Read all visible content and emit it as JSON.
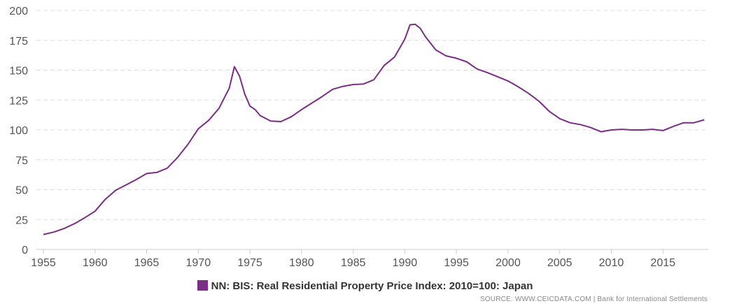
{
  "chart_data": {
    "type": "line",
    "title": "",
    "xlabel": "",
    "ylabel": "",
    "xlim": [
      1955,
      2020
    ],
    "ylim": [
      0,
      200
    ],
    "x_ticks": [
      1955,
      1960,
      1965,
      1970,
      1975,
      1980,
      1985,
      1990,
      1995,
      2000,
      2005,
      2010,
      2015
    ],
    "y_ticks": [
      0,
      25,
      50,
      75,
      100,
      125,
      150,
      175,
      200
    ],
    "grid": true,
    "series": [
      {
        "name": "NN: BIS: Real Residential Property Price Index: 2010=100: Japan",
        "color": "#7B2D87",
        "x": [
          1955.0,
          1956.0,
          1957.0,
          1958.0,
          1959.0,
          1960.0,
          1961.0,
          1962.0,
          1963.0,
          1964.0,
          1965.0,
          1966.0,
          1967.0,
          1968.0,
          1969.0,
          1970.0,
          1971.0,
          1972.0,
          1973.0,
          1973.5,
          1974.0,
          1974.5,
          1975.0,
          1975.5,
          1976.0,
          1977.0,
          1978.0,
          1979.0,
          1980.0,
          1981.0,
          1982.0,
          1983.0,
          1984.0,
          1985.0,
          1986.0,
          1987.0,
          1988.0,
          1989.0,
          1990.0,
          1990.5,
          1991.0,
          1991.5,
          1992.0,
          1993.0,
          1994.0,
          1995.0,
          1996.0,
          1997.0,
          1998.0,
          1999.0,
          2000.0,
          2001.0,
          2002.0,
          2003.0,
          2004.0,
          2005.0,
          2006.0,
          2007.0,
          2008.0,
          2009.0,
          2010.0,
          2011.0,
          2012.0,
          2013.0,
          2014.0,
          2015.0,
          2016.0,
          2017.0,
          2018.0,
          2019.0
        ],
        "values": [
          12.5,
          14.5,
          17.5,
          21.5,
          26.5,
          32.0,
          42.0,
          49.5,
          54.0,
          58.5,
          63.5,
          64.5,
          68.0,
          77.0,
          88.0,
          101.0,
          108.0,
          118.0,
          135.0,
          153.0,
          145.0,
          130.0,
          120.0,
          117.0,
          112.0,
          107.5,
          107.0,
          111.0,
          117.0,
          122.5,
          128.0,
          134.0,
          136.5,
          138.0,
          138.5,
          142.0,
          154.0,
          161.0,
          176.0,
          188.0,
          188.5,
          185.0,
          178.0,
          167.0,
          162.0,
          160.0,
          157.0,
          151.0,
          148.0,
          144.5,
          141.0,
          136.0,
          130.5,
          124.0,
          115.5,
          109.5,
          106.0,
          104.5,
          102.0,
          98.5,
          100.0,
          100.5,
          100.0,
          100.0,
          100.5,
          99.5,
          103.0,
          106.0,
          106.0,
          108.5
        ]
      }
    ]
  },
  "legend": {
    "label": "NN: BIS: Real Residential Property Price Index: 2010=100: Japan"
  },
  "source": {
    "text": "SOURCE: WWW.CEICDATA.COM | Bank for International Settlements"
  }
}
